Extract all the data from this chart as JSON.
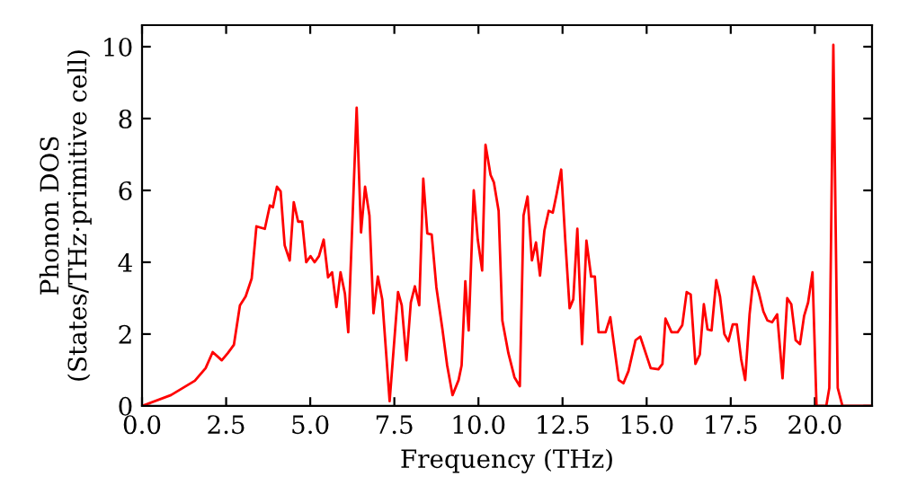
{
  "chart_data": {
    "type": "line",
    "xlabel": "Frequency (THz)",
    "ylabel": "Phonon DOS\n(States/THz·primitive cell)",
    "xlim": [
      0,
      21.7
    ],
    "ylim": [
      0,
      10.6
    ],
    "xticks": [
      {
        "value": 0,
        "label": "0.0"
      },
      {
        "value": 2.5,
        "label": "2.5"
      },
      {
        "value": 5,
        "label": "5.0"
      },
      {
        "value": 7.5,
        "label": "7.5"
      },
      {
        "value": 10,
        "label": "10.0"
      },
      {
        "value": 12.5,
        "label": "12.5"
      },
      {
        "value": 15,
        "label": "15.0"
      },
      {
        "value": 17.5,
        "label": "17.5"
      },
      {
        "value": 20,
        "label": "20.0"
      }
    ],
    "yticks": [
      0,
      2,
      4,
      6,
      8,
      10
    ],
    "series": [
      {
        "color": "#ff0000",
        "x": [
          0,
          0.86,
          1.57,
          1.89,
          2.1,
          2.37,
          2.55,
          2.73,
          2.91,
          3.08,
          3.26,
          3.4,
          3.65,
          3.8,
          3.89,
          4.01,
          4.12,
          4.24,
          4.39,
          4.51,
          4.64,
          4.76,
          4.88,
          5.01,
          5.13,
          5.26,
          5.4,
          5.53,
          5.65,
          5.78,
          5.9,
          6.03,
          6.13,
          6.38,
          6.51,
          6.63,
          6.76,
          6.88,
          7.01,
          7.14,
          7.36,
          7.61,
          7.72,
          7.86,
          7.99,
          8.11,
          8.24,
          8.36,
          8.48,
          8.61,
          8.75,
          8.93,
          9.07,
          9.23,
          9.41,
          9.5,
          9.61,
          9.71,
          9.86,
          9.98,
          10.11,
          10.21,
          10.36,
          10.46,
          10.6,
          10.71,
          10.89,
          11.07,
          11.23,
          11.34,
          11.46,
          11.59,
          11.71,
          11.83,
          11.96,
          12.09,
          12.21,
          12.32,
          12.46,
          12.58,
          12.71,
          12.82,
          12.94,
          13.08,
          13.21,
          13.35,
          13.46,
          13.57,
          13.78,
          13.92,
          14.17,
          14.31,
          14.46,
          14.67,
          14.81,
          15.12,
          15.35,
          15.47,
          15.56,
          15.74,
          15.92,
          16.06,
          16.19,
          16.31,
          16.45,
          16.58,
          16.7,
          16.81,
          16.93,
          17.07,
          17.18,
          17.31,
          17.43,
          17.56,
          17.68,
          17.81,
          17.93,
          18.06,
          18.18,
          18.33,
          18.47,
          18.59,
          18.73,
          18.88,
          19.04,
          19.18,
          19.3,
          19.43,
          19.56,
          19.68,
          19.8,
          19.93,
          20.05,
          20.34,
          20.43,
          20.55,
          20.68,
          20.82,
          21.7
        ],
        "values": [
          0,
          0.3,
          0.7,
          1.05,
          1.5,
          1.27,
          1.47,
          1.7,
          2.8,
          3.05,
          3.55,
          5.0,
          4.93,
          5.58,
          5.53,
          6.1,
          5.97,
          4.47,
          4.05,
          5.67,
          5.13,
          5.13,
          4.0,
          4.17,
          4.0,
          4.17,
          4.63,
          3.58,
          3.72,
          2.75,
          3.72,
          3.13,
          2.05,
          8.3,
          4.83,
          6.1,
          5.3,
          2.58,
          3.6,
          2.97,
          0.13,
          3.17,
          2.8,
          1.27,
          2.88,
          3.33,
          2.8,
          6.33,
          4.8,
          4.77,
          3.3,
          2.13,
          1.13,
          0.3,
          0.72,
          1.13,
          3.47,
          2.1,
          6.0,
          4.63,
          3.77,
          7.27,
          6.43,
          6.22,
          5.43,
          2.38,
          1.47,
          0.8,
          0.55,
          5.3,
          5.83,
          4.05,
          4.55,
          3.63,
          4.88,
          5.43,
          5.38,
          5.88,
          6.58,
          4.63,
          2.72,
          2.97,
          4.93,
          1.72,
          4.6,
          3.6,
          3.6,
          2.05,
          2.05,
          2.47,
          0.72,
          0.63,
          0.97,
          1.83,
          1.93,
          1.05,
          1.02,
          1.17,
          2.43,
          2.05,
          2.05,
          2.25,
          3.17,
          3.1,
          1.17,
          1.43,
          2.83,
          2.13,
          2.1,
          3.5,
          3.05,
          2.0,
          1.8,
          2.27,
          2.27,
          1.3,
          0.72,
          2.55,
          3.6,
          3.17,
          2.63,
          2.38,
          2.33,
          2.55,
          0.77,
          3.0,
          2.83,
          1.83,
          1.72,
          2.5,
          2.88,
          3.72,
          0,
          0,
          0.5,
          10.05,
          0.5,
          0,
          0
        ]
      }
    ]
  }
}
